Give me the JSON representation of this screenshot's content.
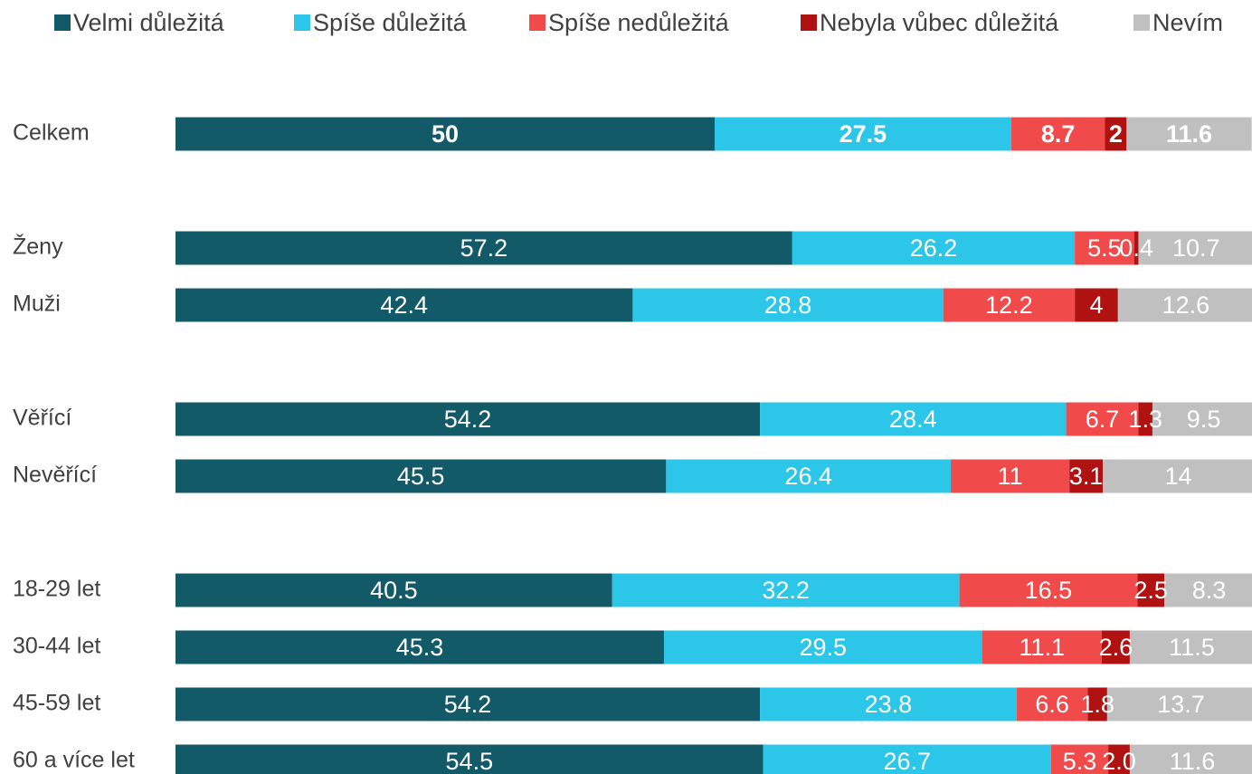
{
  "chart_data": {
    "type": "stacked-bar-horizontal",
    "categories": [
      "Celkem",
      null,
      "Ženy",
      "Muži",
      null,
      "Věřící",
      "Nevěřící",
      null,
      "18-29 let",
      "30-44 let",
      "45-59 let",
      "60 a více  let"
    ],
    "xlim": [
      0,
      100
    ],
    "legend": "top",
    "series": [
      {
        "name": "Velmi důležitá",
        "color": "#135a68",
        "values": [
          50,
          null,
          57.2,
          42.4,
          null,
          54.2,
          45.5,
          null,
          40.5,
          45.3,
          54.2,
          54.5
        ]
      },
      {
        "name": "Spíše důležitá",
        "color": "#2bc6e8",
        "values": [
          27.5,
          null,
          26.2,
          28.8,
          null,
          28.4,
          26.4,
          null,
          32.2,
          29.5,
          23.8,
          26.7
        ]
      },
      {
        "name": "Spíše nedůležitá",
        "color": "#f04a4a",
        "values": [
          8.7,
          null,
          5.5,
          12.2,
          null,
          6.7,
          11,
          null,
          16.5,
          11.1,
          6.6,
          5.3
        ]
      },
      {
        "name": "Nebyla vůbec důležitá",
        "color": "#b01212",
        "values": [
          2,
          null,
          0.4,
          4,
          null,
          1.3,
          3.1,
          null,
          2.5,
          2.6,
          1.8,
          2
        ],
        "value_labels": [
          "2",
          null,
          "0.4",
          "4",
          null,
          "1.3",
          "3.1",
          null,
          "2.5",
          "2.6",
          "1.8",
          "2.0"
        ]
      },
      {
        "name": "Nevím",
        "color": "#c0c0c0",
        "values": [
          11.6,
          null,
          10.7,
          12.6,
          null,
          9.5,
          14,
          null,
          8.3,
          11.5,
          13.7,
          11.6
        ]
      }
    ]
  }
}
